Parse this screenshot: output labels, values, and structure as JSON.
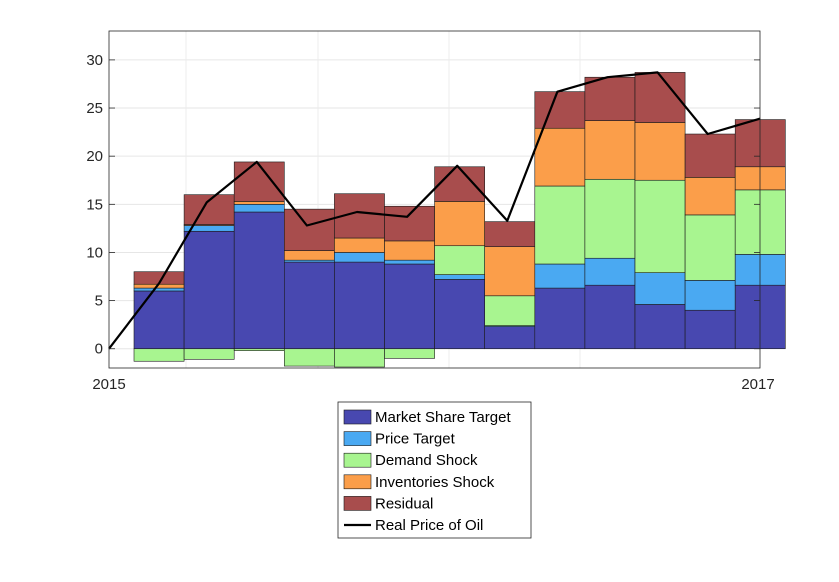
{
  "chart_data": {
    "type": "bar",
    "stacked": true,
    "title": "",
    "xlabel": "",
    "ylabel": "",
    "ylim": [
      -2,
      33
    ],
    "yticks": [
      0,
      5,
      10,
      15,
      20,
      25,
      30
    ],
    "x_tick_labels": [
      "2015",
      "2017"
    ],
    "grid": true,
    "legend_position": "bottom",
    "categories": [
      "1",
      "2",
      "3",
      "4",
      "5",
      "6",
      "7",
      "8",
      "9",
      "10",
      "11",
      "12",
      "13"
    ],
    "series": [
      {
        "name": "Market Share Target",
        "color": "#4848b0",
        "values": [
          6.0,
          12.2,
          14.2,
          9.0,
          9.0,
          8.8,
          7.2,
          2.3,
          6.3,
          6.6,
          4.6,
          4.0,
          6.6
        ]
      },
      {
        "name": "Price Target",
        "color": "#4aa9f2",
        "values": [
          0.3,
          0.6,
          0.8,
          0.2,
          1.0,
          0.4,
          0.5,
          0.1,
          2.5,
          2.8,
          3.3,
          3.1,
          3.2
        ]
      },
      {
        "name": "Demand Shock",
        "color": "#a8f590",
        "values": [
          -1.3,
          -1.1,
          -0.2,
          -1.8,
          -1.9,
          -1.0,
          3.0,
          3.1,
          8.1,
          8.2,
          9.6,
          6.8,
          6.7
        ]
      },
      {
        "name": "Inventories Shock",
        "color": "#fb9e4a",
        "values": [
          0.4,
          0.1,
          0.3,
          1.0,
          1.5,
          2.0,
          4.6,
          5.1,
          6.0,
          6.1,
          6.0,
          3.9,
          2.4
        ]
      },
      {
        "name": "Residual",
        "color": "#a84d4d",
        "values": [
          1.3,
          3.1,
          4.1,
          4.3,
          4.6,
          3.6,
          3.6,
          2.6,
          3.8,
          4.5,
          5.2,
          4.5,
          4.9
        ]
      }
    ],
    "line": {
      "name": "Real Price of Oil",
      "color": "#000000",
      "x": [
        0,
        1.0,
        1.95,
        2.95,
        3.95,
        4.95,
        5.95,
        6.95,
        7.95,
        8.95,
        9.95,
        10.95,
        11.95,
        13.0
      ],
      "y": [
        0,
        6.8,
        15.2,
        19.4,
        12.8,
        14.2,
        13.7,
        19.0,
        13.3,
        26.7,
        28.2,
        28.7,
        22.3,
        23.9
      ]
    }
  }
}
